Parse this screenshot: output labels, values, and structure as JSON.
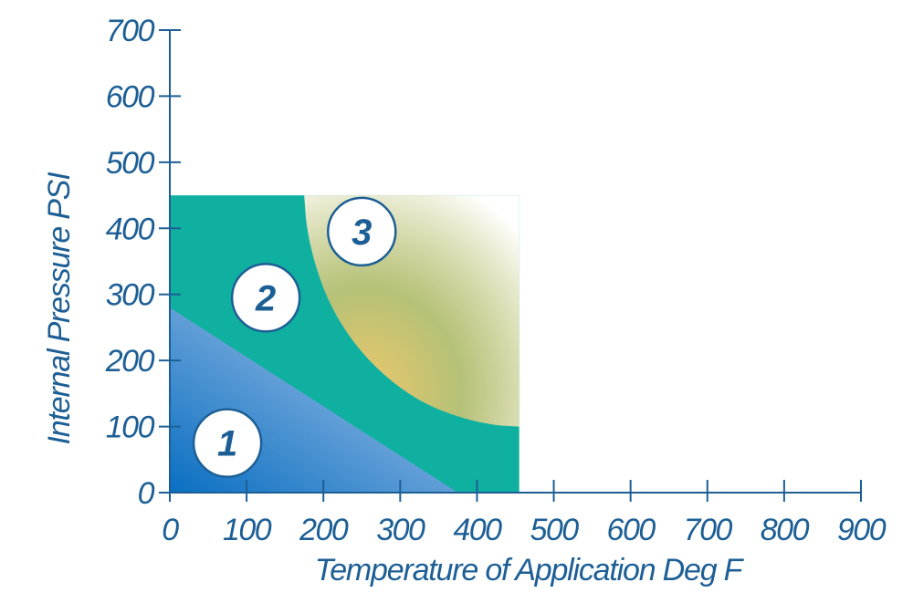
{
  "colors": {
    "axis": "#1d5f95",
    "text": "#1d5f95",
    "zone1_dark": "#0a6fc2",
    "zone1_light": "#b8cdec",
    "zone2": "#10b0a0",
    "zone3_warm": "#ecc76a",
    "zone3_light": "#ffffff",
    "badge_fill": "#ffffff",
    "badge_stroke": "#1d5f95"
  },
  "chart_data": {
    "type": "area",
    "xlabel": "Temperature of Application Deg F",
    "ylabel": "Internal Pressure PSI",
    "xlim": [
      0,
      900
    ],
    "ylim": [
      0,
      700
    ],
    "x_ticks": [
      0,
      100,
      200,
      300,
      400,
      500,
      600,
      700,
      800,
      900
    ],
    "y_ticks": [
      0,
      100,
      200,
      300,
      400,
      500,
      600,
      700
    ],
    "grid": false,
    "legend": "none",
    "regions": [
      {
        "label": "2",
        "description_points": [
          [
            0,
            0
          ],
          [
            0,
            450
          ],
          [
            455,
            450
          ],
          [
            455,
            0
          ]
        ]
      },
      {
        "label": "1",
        "boundary": [
          [
            0,
            280
          ],
          [
            375,
            0
          ]
        ],
        "polygon": [
          [
            0,
            0
          ],
          [
            0,
            280
          ],
          [
            375,
            0
          ]
        ]
      },
      {
        "label": "3",
        "polygon": [
          [
            175,
            450
          ],
          [
            178,
            400
          ],
          [
            190,
            340
          ],
          [
            210,
            280
          ],
          [
            240,
            225
          ],
          [
            278,
            178
          ],
          [
            322,
            140
          ],
          [
            370,
            116
          ],
          [
            420,
            102
          ],
          [
            455,
            100
          ],
          [
            455,
            450
          ]
        ]
      }
    ],
    "zone_labels": [
      {
        "label": "1",
        "x": 75,
        "y": 75
      },
      {
        "label": "2",
        "x": 125,
        "y": 295
      },
      {
        "label": "3",
        "x": 250,
        "y": 395
      }
    ]
  }
}
